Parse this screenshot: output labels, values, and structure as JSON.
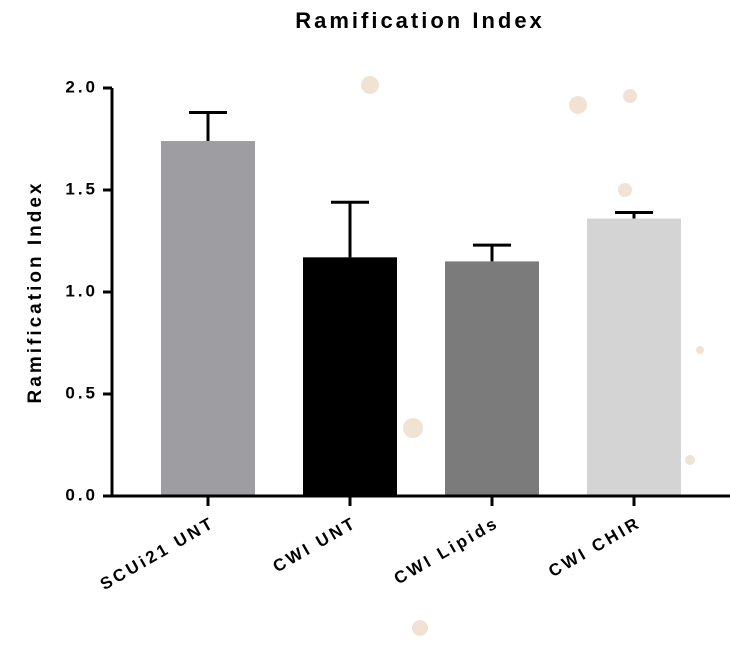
{
  "chart_data": {
    "type": "bar",
    "title": "Ramification Index",
    "y_label": "Ramification Index",
    "categories": [
      "SCUi21 UNT",
      "CWI UNT",
      "CWI Lipids",
      "CWI CHIR"
    ],
    "values": [
      1.74,
      1.17,
      1.15,
      1.36
    ],
    "errors": [
      0.14,
      0.27,
      0.08,
      0.03
    ],
    "colors": [
      "#9d9da2",
      "#000000",
      "#7b7b7b",
      "#d4d4d4"
    ],
    "ylim": [
      0,
      2
    ],
    "yticks": [
      {
        "value": 0,
        "label": "0.0"
      },
      0.5,
      {
        "value": 1,
        "label": "1.0"
      },
      1.5,
      {
        "value": 2,
        "label": "2.0"
      }
    ]
  }
}
